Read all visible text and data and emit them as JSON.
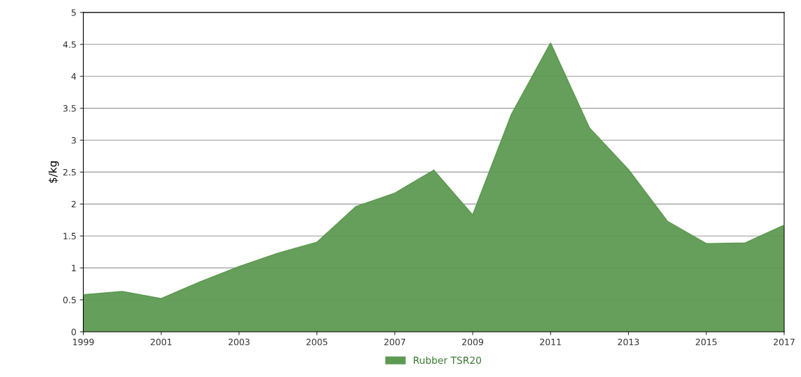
{
  "chart_data": {
    "type": "area",
    "ylabel": "$/kg",
    "x": [
      1999,
      2000,
      2001,
      2002,
      2003,
      2004,
      2005,
      2006,
      2007,
      2008,
      2009,
      2010,
      2011,
      2012,
      2013,
      2014,
      2015,
      2016,
      2017
    ],
    "series": [
      {
        "name": "Rubber TSR20",
        "color": "#5e9a52",
        "values": [
          0.58,
          0.63,
          0.52,
          0.78,
          1.02,
          1.23,
          1.4,
          1.96,
          2.17,
          2.53,
          1.83,
          3.41,
          4.52,
          3.19,
          2.54,
          1.73,
          1.38,
          1.39,
          1.67
        ]
      }
    ],
    "xlim": [
      1999,
      2017
    ],
    "xticks": [
      1999,
      2001,
      2003,
      2005,
      2007,
      2009,
      2011,
      2013,
      2015,
      2017
    ],
    "ylim": [
      0,
      5
    ],
    "yticks": [
      0,
      0.5,
      1,
      1.5,
      2,
      2.5,
      3,
      3.5,
      4,
      4.5,
      5
    ],
    "grid": "y",
    "legend": "bottom"
  }
}
